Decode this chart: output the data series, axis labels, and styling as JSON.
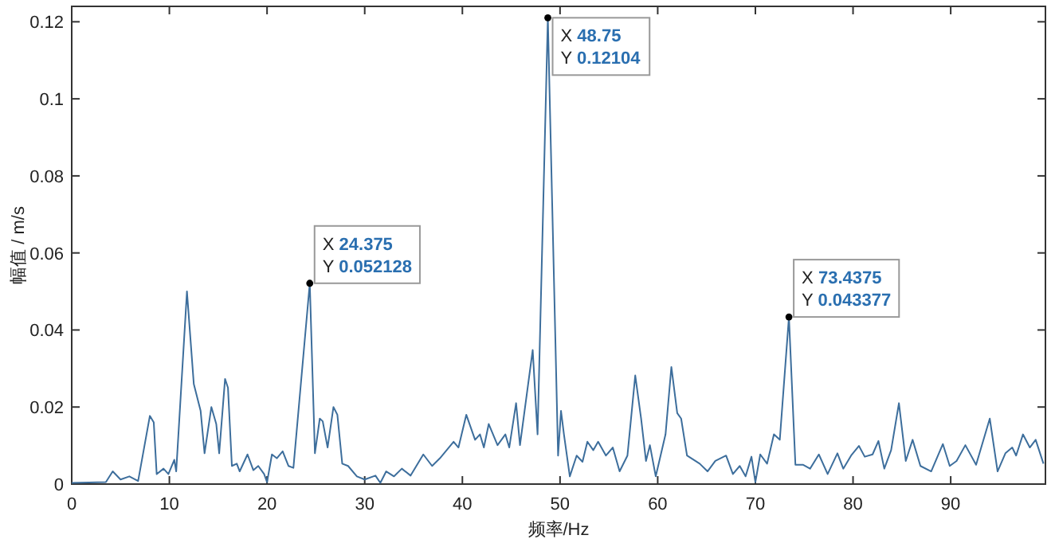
{
  "chart_data": {
    "type": "line",
    "xlabel": "频率/Hz",
    "ylabel": "幅值 / m/s",
    "xlim": [
      0,
      99.7
    ],
    "ylim": [
      0,
      0.124
    ],
    "xticks": [
      0,
      10,
      20,
      30,
      40,
      50,
      60,
      70,
      80,
      90
    ],
    "yticks": [
      0,
      0.02,
      0.04,
      0.06,
      0.08,
      0.1,
      0.12
    ],
    "grid": false,
    "series": [
      {
        "color": "#3d6e9c",
        "x": [
          0,
          3.5,
          4.2,
          5.0,
          5.9,
          6.8,
          8.0,
          8.4,
          8.7,
          9.4,
          9.9,
          10.5,
          10.7,
          11.8,
          12.5,
          13.2,
          13.6,
          14.3,
          14.8,
          15.1,
          15.7,
          16.0,
          16.4,
          16.9,
          17.2,
          18.0,
          18.6,
          19.1,
          19.7,
          20.0,
          20.5,
          21.0,
          21.6,
          22.2,
          22.7,
          24.375,
          24.9,
          25.4,
          25.7,
          26.2,
          26.8,
          27.2,
          27.7,
          28.3,
          29.2,
          30.0,
          31.1,
          31.6,
          32.2,
          33.0,
          33.8,
          34.7,
          36.0,
          36.9,
          37.7,
          39.1,
          39.6,
          40.4,
          41.3,
          41.8,
          42.2,
          42.7,
          43.6,
          44.4,
          44.8,
          45.5,
          45.9,
          47.2,
          47.7,
          48.75,
          49.8,
          50.1,
          50.4,
          51.0,
          51.7,
          52.3,
          52.8,
          53.4,
          53.9,
          54.7,
          55.4,
          56.1,
          56.9,
          57.7,
          58.3,
          58.8,
          59.2,
          59.8,
          60.8,
          61.4,
          62.0,
          62.4,
          63.0,
          64.3,
          65.1,
          65.9,
          67.0,
          67.7,
          68.4,
          69.0,
          69.6,
          70.0,
          70.5,
          71.2,
          71.9,
          72.5,
          73.4375,
          74.1,
          74.9,
          75.6,
          76.5,
          77.4,
          78.4,
          79.0,
          79.8,
          80.6,
          81.2,
          82.0,
          82.6,
          83.2,
          83.9,
          84.7,
          85.4,
          86.1,
          86.9,
          88.0,
          89.2,
          89.9,
          90.6,
          91.5,
          92.6,
          94.0,
          94.8,
          95.6,
          96.3,
          96.7,
          97.4,
          98.1,
          98.7,
          99.5
        ],
        "values": [
          0.0003,
          0.0005,
          0.0033,
          0.0012,
          0.002,
          0.0008,
          0.0177,
          0.016,
          0.0026,
          0.004,
          0.0026,
          0.0063,
          0.0033,
          0.05,
          0.026,
          0.019,
          0.008,
          0.02,
          0.0156,
          0.008,
          0.0273,
          0.025,
          0.0047,
          0.0053,
          0.0033,
          0.0077,
          0.0036,
          0.0047,
          0.0026,
          0.0005,
          0.0077,
          0.0067,
          0.0085,
          0.0047,
          0.0042,
          0.052128,
          0.008,
          0.017,
          0.0163,
          0.0095,
          0.02,
          0.018,
          0.0053,
          0.0047,
          0.002,
          0.0012,
          0.0022,
          0.0003,
          0.0033,
          0.002,
          0.004,
          0.0022,
          0.0077,
          0.0047,
          0.0067,
          0.011,
          0.0095,
          0.018,
          0.0115,
          0.0129,
          0.0095,
          0.0156,
          0.0101,
          0.0129,
          0.0095,
          0.021,
          0.0101,
          0.0348,
          0.0129,
          0.12104,
          0.0074,
          0.019,
          0.0129,
          0.002,
          0.0074,
          0.0058,
          0.011,
          0.0088,
          0.011,
          0.0074,
          0.0095,
          0.0033,
          0.0074,
          0.0282,
          0.017,
          0.006,
          0.0101,
          0.002,
          0.0129,
          0.0304,
          0.0184,
          0.017,
          0.0074,
          0.0053,
          0.0033,
          0.006,
          0.0074,
          0.0026,
          0.0047,
          0.002,
          0.0071,
          0.0005,
          0.0077,
          0.0053,
          0.0129,
          0.0115,
          0.043377,
          0.005,
          0.005,
          0.004,
          0.0077,
          0.0026,
          0.008,
          0.004,
          0.0074,
          0.0099,
          0.0071,
          0.0077,
          0.0112,
          0.004,
          0.0088,
          0.021,
          0.006,
          0.0115,
          0.0047,
          0.0033,
          0.0104,
          0.0047,
          0.006,
          0.0101,
          0.005,
          0.017,
          0.0033,
          0.008,
          0.0095,
          0.0074,
          0.0129,
          0.0095,
          0.0115,
          0.0053
        ]
      }
    ],
    "annotations": [
      {
        "text": "X 24.375\nY 0.052128",
        "x": 24.375,
        "y": 0.052128
      },
      {
        "text": "X 48.75\nY 0.12104",
        "x": 48.75,
        "y": 0.12104
      },
      {
        "text": "X 73.4375\nY 0.043377",
        "x": 73.4375,
        "y": 0.043377
      }
    ]
  }
}
